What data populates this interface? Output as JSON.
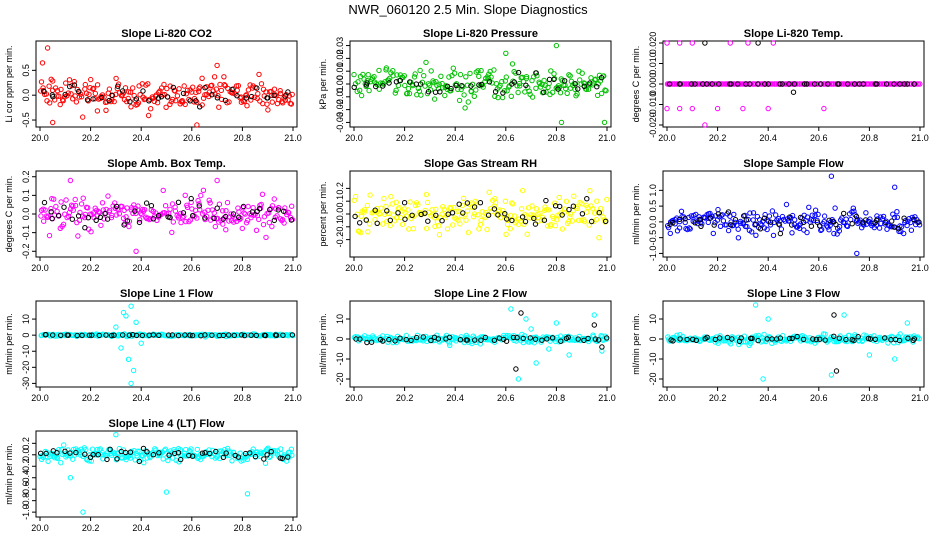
{
  "main_title": "NWR_060120  2.5 Min. Slope Diagnostics",
  "x_axis": {
    "xlim": [
      20.0,
      21.0
    ],
    "ticks": [
      20.0,
      20.2,
      20.4,
      20.6,
      20.8,
      21.0
    ],
    "tick_labels": [
      "20.0",
      "20.2",
      "20.4",
      "20.6",
      "20.8",
      "21.0"
    ]
  },
  "chart_data": [
    {
      "type": "scatter",
      "title": "Slope Li-820 CO2",
      "ylabel": "Li cor ppm per min.",
      "ylim": [
        -0.6,
        1.05
      ],
      "yticks": [
        -0.5,
        0,
        0.5
      ],
      "ytick_labels": [
        "-0.5",
        "0.0",
        "0.5"
      ],
      "series": [
        {
          "name": "all",
          "color": "#ff0000",
          "center": 0.0,
          "spread": 0.25,
          "count": 220,
          "outliers": [
            [
              20.03,
              0.95
            ],
            [
              20.01,
              0.65
            ],
            [
              20.05,
              -0.55
            ],
            [
              20.62,
              -0.6
            ],
            [
              20.7,
              0.6
            ]
          ]
        },
        {
          "name": "selected",
          "color": "#000000",
          "center": 0.0,
          "spread": 0.15,
          "count": 40,
          "outliers": []
        }
      ]
    },
    {
      "type": "scatter",
      "title": "Slope Li-820 Pressure",
      "ylabel": "kPa per min.",
      "ylim": [
        -0.032,
        0.032
      ],
      "yticks": [
        -0.03,
        -0.02,
        -0.01,
        0.0,
        0.01,
        0.02,
        0.03
      ],
      "ytick_labels": [
        "-0.03",
        "-0.02",
        "-0.01",
        "0.00",
        "0.01",
        "0.02",
        "0.03"
      ],
      "series": [
        {
          "name": "all",
          "color": "#00c000",
          "center": 0.0,
          "spread": 0.01,
          "count": 220,
          "outliers": [
            [
              20.8,
              0.03
            ],
            [
              20.82,
              -0.03
            ],
            [
              20.99,
              -0.03
            ],
            [
              20.6,
              0.024
            ]
          ]
        },
        {
          "name": "selected",
          "color": "#000000",
          "center": 0.0,
          "spread": 0.006,
          "count": 40,
          "outliers": []
        }
      ]
    },
    {
      "type": "scatter",
      "title": "Slope Li-820 Temp.",
      "ylabel": "degrees C per min.",
      "ylim": [
        -0.02,
        0.02
      ],
      "yticks": [
        -0.02,
        -0.01,
        0.0,
        0.01,
        0.02
      ],
      "ytick_labels": [
        "-0.020",
        "-0.010",
        "0.000",
        "0.010",
        "0.020"
      ],
      "series": [
        {
          "name": "all",
          "color": "#ff00ff",
          "center": 0.0,
          "spread": 0.0,
          "count": 200,
          "outliers": [
            [
              20.0,
              0.02
            ],
            [
              20.05,
              0.02
            ],
            [
              20.1,
              0.02
            ],
            [
              20.25,
              0.02
            ],
            [
              20.32,
              0.02
            ],
            [
              20.42,
              0.02
            ],
            [
              20.0,
              -0.012
            ],
            [
              20.05,
              -0.012
            ],
            [
              20.1,
              -0.012
            ],
            [
              20.2,
              -0.012
            ],
            [
              20.3,
              -0.012
            ],
            [
              20.4,
              -0.012
            ],
            [
              20.62,
              -0.012
            ],
            [
              20.15,
              -0.02
            ]
          ]
        },
        {
          "name": "selected",
          "color": "#000000",
          "center": 0.0,
          "spread": 0.0,
          "count": 40,
          "outliers": [
            [
              20.15,
              0.02
            ],
            [
              20.36,
              0.02
            ],
            [
              20.5,
              -0.004
            ]
          ]
        }
      ]
    },
    {
      "type": "scatter",
      "title": "Slope Amb. Box Temp.",
      "ylabel": "degrees C per min.",
      "ylim": [
        -0.22,
        0.22
      ],
      "yticks": [
        -0.2,
        -0.1,
        0.0,
        0.1,
        0.2
      ],
      "ytick_labels": [
        "-0.2",
        "-0.1",
        "0.0",
        "0.1",
        "0.2"
      ],
      "series": [
        {
          "name": "all",
          "color": "#ff00ff",
          "center": 0.0,
          "spread": 0.07,
          "count": 230,
          "outliers": [
            [
              20.38,
              -0.2
            ],
            [
              20.12,
              0.18
            ],
            [
              20.7,
              0.18
            ]
          ]
        },
        {
          "name": "selected",
          "color": "#000000",
          "center": 0.0,
          "spread": 0.06,
          "count": 45,
          "outliers": []
        }
      ]
    },
    {
      "type": "scatter",
      "title": "Slope Gas Stream RH",
      "ylabel": "percent per min.",
      "ylim": [
        -0.32,
        0.32
      ],
      "yticks": [
        -0.2,
        -0.1,
        0.0,
        0.1,
        0.2
      ],
      "ytick_labels": [
        "-0.2",
        "-0.1",
        "0.0",
        "0.1",
        "0.2"
      ],
      "series": [
        {
          "name": "all",
          "color": "#ffff00",
          "center": 0.0,
          "spread": 0.12,
          "count": 220,
          "outliers": []
        },
        {
          "name": "selected",
          "color": "#000000",
          "center": 0.0,
          "spread": 0.1,
          "count": 45,
          "outliers": []
        }
      ]
    },
    {
      "type": "scatter",
      "title": "Slope Sample Flow",
      "ylabel": "ml/min per min.",
      "ylim": [
        -1.05,
        1.55
      ],
      "yticks": [
        -1,
        -0.5,
        0,
        0.5,
        1
      ],
      "ytick_labels": [
        "-1.0",
        "-0.5",
        "0.0",
        "0.5",
        "1.0"
      ],
      "series": [
        {
          "name": "all",
          "color": "#0000ff",
          "center": 0.0,
          "spread": 0.32,
          "count": 220,
          "outliers": [
            [
              20.65,
              1.45
            ],
            [
              20.75,
              -1.0
            ],
            [
              20.9,
              1.1
            ]
          ]
        },
        {
          "name": "selected",
          "color": "#000000",
          "center": 0.0,
          "spread": 0.2,
          "count": 45,
          "outliers": []
        }
      ]
    },
    {
      "type": "scatter",
      "title": "Slope Line 1 Flow",
      "ylabel": "ml/min per min.",
      "ylim": [
        -31,
        20
      ],
      "yticks": [
        -30,
        -20,
        -10,
        0,
        10
      ],
      "ytick_labels": [
        "-30",
        "-20",
        "-10",
        "0",
        "10"
      ],
      "series": [
        {
          "name": "all",
          "color": "#00ffff",
          "center": 0.0,
          "spread": 0.6,
          "count": 200,
          "outliers": [
            [
              20.36,
              18
            ],
            [
              20.34,
              12
            ],
            [
              20.38,
              8
            ],
            [
              20.32,
              -8
            ],
            [
              20.35,
              -15
            ],
            [
              20.37,
              -22
            ],
            [
              20.36,
              -30
            ],
            [
              20.33,
              14
            ],
            [
              20.3,
              5
            ],
            [
              20.4,
              -5
            ]
          ]
        },
        {
          "name": "selected",
          "color": "#000000",
          "center": 0.0,
          "spread": 0.3,
          "count": 45,
          "outliers": []
        }
      ]
    },
    {
      "type": "scatter",
      "title": "Slope Line 2 Flow",
      "ylabel": "ml/min per min.",
      "ylim": [
        -23,
        18
      ],
      "yticks": [
        -20,
        -10,
        0,
        10
      ],
      "ytick_labels": [
        "-20",
        "-10",
        "0",
        "10"
      ],
      "series": [
        {
          "name": "all",
          "color": "#00ffff",
          "center": 0.0,
          "spread": 1.5,
          "count": 220,
          "outliers": [
            [
              20.65,
              -20
            ],
            [
              20.62,
              15
            ],
            [
              20.68,
              10
            ],
            [
              20.72,
              -12
            ],
            [
              20.8,
              8
            ],
            [
              20.85,
              -8
            ],
            [
              20.95,
              12
            ],
            [
              20.98,
              -6
            ],
            [
              20.7,
              5
            ],
            [
              20.77,
              -5
            ]
          ]
        },
        {
          "name": "selected",
          "color": "#000000",
          "center": 0.0,
          "spread": 1.0,
          "count": 45,
          "outliers": [
            [
              20.66,
              13
            ],
            [
              20.64,
              -15
            ],
            [
              20.95,
              7
            ],
            [
              20.98,
              -4
            ]
          ]
        }
      ]
    },
    {
      "type": "scatter",
      "title": "Slope Line 3 Flow",
      "ylabel": "ml/min per min.",
      "ylim": [
        -23,
        18
      ],
      "yticks": [
        -20,
        -10,
        0,
        10
      ],
      "ytick_labels": [
        "-20",
        "-10",
        "0",
        "10"
      ],
      "series": [
        {
          "name": "all",
          "color": "#00ffff",
          "center": 0.0,
          "spread": 1.8,
          "count": 220,
          "outliers": [
            [
              20.35,
              17
            ],
            [
              20.38,
              -20
            ],
            [
              20.4,
              10
            ],
            [
              20.65,
              -18
            ],
            [
              20.7,
              12
            ],
            [
              20.8,
              -8
            ],
            [
              20.95,
              8
            ],
            [
              20.9,
              -10
            ]
          ]
        },
        {
          "name": "selected",
          "color": "#000000",
          "center": 0.0,
          "spread": 1.0,
          "count": 45,
          "outliers": [
            [
              20.66,
              12
            ],
            [
              20.67,
              -16
            ]
          ]
        }
      ]
    },
    {
      "type": "scatter",
      "title": "Slope Line 4 (LT) Flow",
      "ylabel": "ml/min per min.",
      "ylim": [
        -1.05,
        0.38
      ],
      "yticks": [
        -1.0,
        -0.8,
        -0.6,
        -0.4,
        -0.2,
        0.0,
        0.2
      ],
      "ytick_labels": [
        "-1.0",
        "-0.8",
        "-0.6",
        "-0.4",
        "-0.2",
        "0.0",
        "0.2"
      ],
      "series": [
        {
          "name": "all",
          "color": "#00ffff",
          "center": 0.0,
          "spread": 0.1,
          "count": 230,
          "outliers": [
            [
              20.17,
              -1.0
            ],
            [
              20.5,
              -0.65
            ],
            [
              20.82,
              -0.68
            ],
            [
              20.3,
              0.35
            ],
            [
              20.12,
              -0.4
            ]
          ]
        },
        {
          "name": "selected",
          "color": "#000000",
          "center": 0.0,
          "spread": 0.08,
          "count": 45,
          "outliers": []
        }
      ]
    }
  ]
}
